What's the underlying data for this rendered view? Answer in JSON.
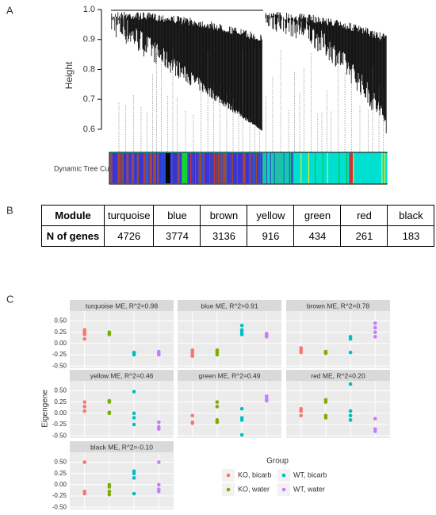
{
  "panels": [
    "A",
    "B",
    "C"
  ],
  "dendrogram": {
    "ylabel": "Height",
    "ylim": [
      0.56,
      1.0
    ],
    "yticks": [
      0.6,
      0.7,
      0.8,
      0.9,
      {
        "value": 1,
        "label": "1.0"
      }
    ],
    "colorbar_label": "Dynamic Tree Cut"
  },
  "table": {
    "header": [
      "Module",
      "turquoise",
      "blue",
      "brown",
      "yellow",
      "green",
      "red",
      "black"
    ],
    "rows": [
      [
        "N of genes",
        4726,
        3774,
        3136,
        916,
        434,
        261,
        183
      ]
    ]
  },
  "chart_data": {
    "type": "scatter",
    "ylabel": "Eigengene",
    "legend_title": "Group",
    "ylim": [
      -0.55,
      0.72
    ],
    "yticks": [
      {
        "value": -0.5,
        "label": "-0.50"
      },
      {
        "value": -0.25,
        "label": "-0.25"
      },
      {
        "value": 0,
        "label": "0.00"
      },
      {
        "value": 0.25,
        "label": "0.25"
      },
      {
        "value": 0.5,
        "label": "0.50"
      }
    ],
    "series": [
      {
        "name": "KO, bicarb",
        "color": "#F8766D"
      },
      {
        "name": "KO, water",
        "color": "#7CAE00"
      },
      {
        "name": "WT, bicarb",
        "color": "#00BFC4"
      },
      {
        "name": "WT, water",
        "color": "#C77CFF"
      }
    ],
    "facets": [
      {
        "title": "turquoise ME, R^2=0.98",
        "values": [
          [
            0.3,
            0.25,
            0.2,
            0.1
          ],
          [
            0.25,
            0.22,
            0.2
          ],
          [
            -0.2,
            -0.22,
            -0.25
          ],
          [
            -0.18,
            -0.22,
            -0.25
          ]
        ]
      },
      {
        "title": "blue ME, R^2=0.91",
        "values": [
          [
            -0.15,
            -0.2,
            -0.25,
            -0.28
          ],
          [
            -0.15,
            -0.2,
            -0.25
          ],
          [
            0.4,
            0.3,
            0.25,
            0.2
          ],
          [
            0.22,
            0.18,
            0.15
          ]
        ]
      },
      {
        "title": "brown ME, R^2=0.78",
        "values": [
          [
            -0.1,
            -0.15,
            -0.2
          ],
          [
            -0.18,
            -0.2,
            -0.22
          ],
          [
            0.15,
            0.1,
            -0.2
          ],
          [
            0.45,
            0.35,
            0.25,
            0.15
          ]
        ]
      },
      {
        "title": "yellow ME, R^2=0.46",
        "values": [
          [
            0.25,
            0.15,
            0.05
          ],
          [
            0.28,
            0.25,
            0.02,
            0
          ],
          [
            0.48,
            0,
            -0.1,
            -0.25
          ],
          [
            -0.2,
            -0.3,
            -0.35
          ]
        ]
      },
      {
        "title": "green ME, R^2=0.49",
        "values": [
          [
            -0.05,
            -0.2,
            -0.22
          ],
          [
            0.25,
            0.15,
            -0.15,
            -0.2
          ],
          [
            0.1,
            -0.1,
            -0.15,
            -0.48
          ],
          [
            0.38,
            0.32,
            0.28
          ]
        ]
      },
      {
        "title": "red ME, R^2=0.20",
        "values": [
          [
            0.1,
            0.05,
            -0.05
          ],
          [
            0.3,
            0.25,
            -0.05,
            -0.1
          ],
          [
            0.65,
            0.05,
            -0.05,
            -0.15
          ],
          [
            -0.12,
            -0.35,
            -0.4
          ]
        ]
      },
      {
        "title": "black ME, R^2=-0.10",
        "values": [
          [
            0.5,
            -0.15,
            -0.2
          ],
          [
            0,
            -0.05,
            -0.15,
            -0.22
          ],
          [
            0.3,
            0.25,
            0.15,
            -0.2
          ],
          [
            0.5,
            0,
            -0.1,
            -0.15
          ]
        ]
      }
    ]
  }
}
